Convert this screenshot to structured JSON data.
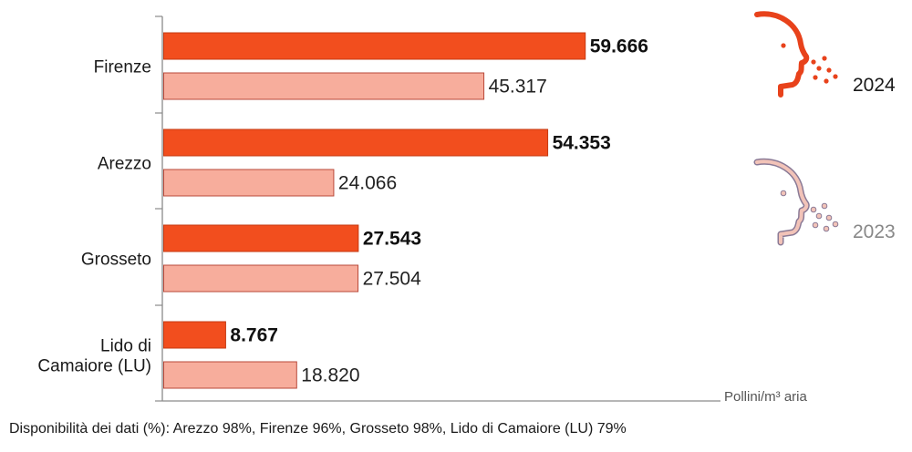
{
  "chart_data": {
    "type": "bar",
    "orientation": "horizontal",
    "categories": [
      [
        "Firenze"
      ],
      [
        "Arezzo"
      ],
      [
        "Grosseto"
      ],
      [
        "Lido di",
        "Camaiore (LU)"
      ]
    ],
    "series": [
      {
        "name": "2024",
        "color": "#f24e1e",
        "values": [
          59666,
          54353,
          27543,
          8767
        ],
        "labels": [
          "59.666",
          "54.353",
          "27.543",
          "8.767"
        ]
      },
      {
        "name": "2023",
        "color": "#f7ad9c",
        "values": [
          45317,
          24066,
          27504,
          18820
        ],
        "labels": [
          "45.317",
          "24.066",
          "27.504",
          "18.820"
        ]
      }
    ],
    "xlim": [
      0,
      79000
    ],
    "unit_label": "Pollini/m³ aria",
    "legend": [
      {
        "label": "2024",
        "icon": "face-sneeze-icon",
        "color": "#e8421b"
      },
      {
        "label": "2023",
        "icon": "face-sneeze-icon",
        "color": "#d6a6a0",
        "outline": "#8a7a96"
      }
    ]
  },
  "footnote": "Disponibilità dei dati (%): Arezzo 98%, Firenze 96%, Grosseto 98%, Lido di Camaiore (LU) 79%"
}
